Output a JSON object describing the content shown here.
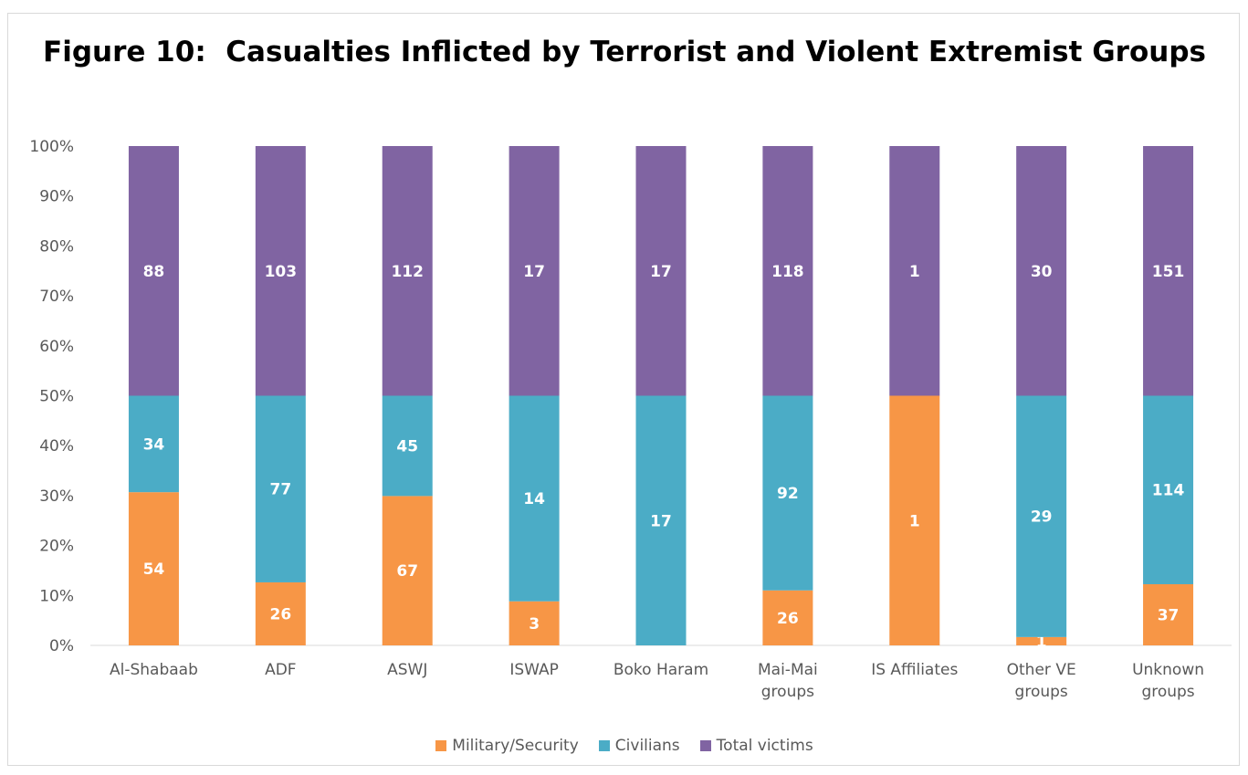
{
  "chart_data": {
    "type": "bar",
    "stacked": "100%",
    "title": "Figure 10:  Casualties Inflicted by Terrorist and Violent Extremist Groups",
    "categories": [
      "Al-Shabaab",
      "ADF",
      "ASWJ",
      "ISWAP",
      "Boko Haram",
      "Mai-Mai groups",
      "IS Affiliates",
      "Other VE groups",
      "Unknown groups"
    ],
    "category_lines": [
      [
        "Al-Shabaab"
      ],
      [
        "ADF"
      ],
      [
        "ASWJ"
      ],
      [
        "ISWAP"
      ],
      [
        "Boko Haram"
      ],
      [
        "Mai-Mai",
        "groups"
      ],
      [
        "IS Affiliates"
      ],
      [
        "Other VE",
        "groups"
      ],
      [
        "Unknown",
        "groups"
      ]
    ],
    "series": [
      {
        "name": "Military/Security",
        "color": "#f79646",
        "values": [
          54,
          26,
          67,
          3,
          0,
          26,
          1,
          1,
          37
        ]
      },
      {
        "name": "Civilians",
        "color": "#4bacc6",
        "values": [
          34,
          77,
          45,
          14,
          17,
          92,
          0,
          29,
          114
        ]
      },
      {
        "name": "Total victims",
        "color": "#8064a2",
        "values": [
          88,
          103,
          112,
          17,
          17,
          118,
          1,
          30,
          151
        ]
      }
    ],
    "yticks": [
      "0%",
      "10%",
      "20%",
      "30%",
      "40%",
      "50%",
      "60%",
      "70%",
      "80%",
      "90%",
      "100%"
    ],
    "ylim": [
      0,
      100
    ],
    "grid": false,
    "legend_position": "bottom"
  }
}
